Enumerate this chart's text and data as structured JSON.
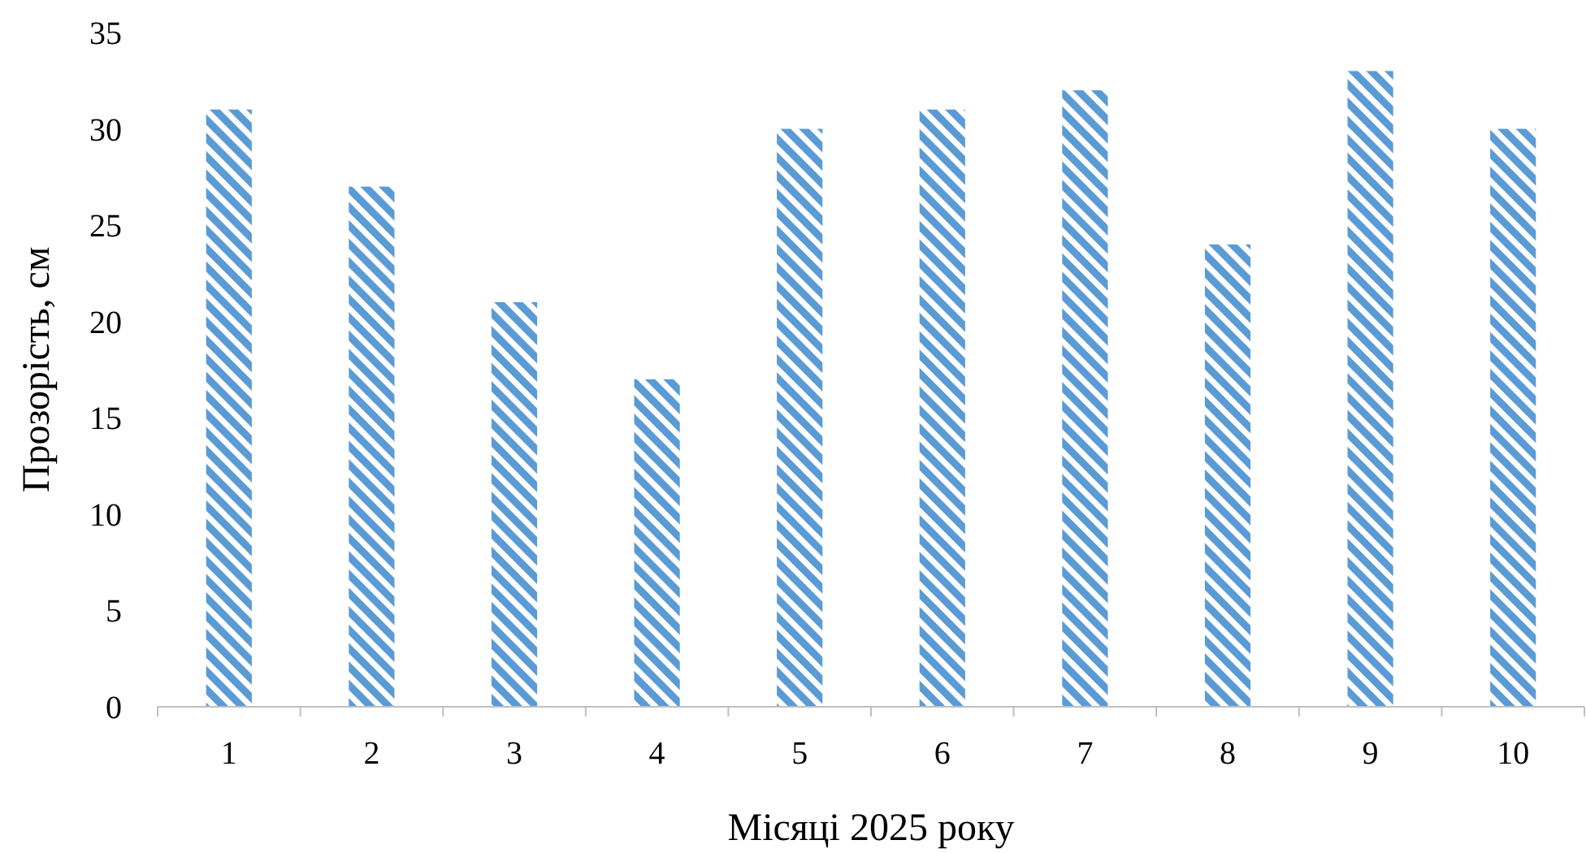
{
  "chart_data": {
    "type": "bar",
    "xlabel": "Місяці 2025 року",
    "ylabel": "Прозорість, см",
    "categories": [
      "1",
      "2",
      "3",
      "4",
      "5",
      "6",
      "7",
      "8",
      "9",
      "10"
    ],
    "values": [
      31,
      27,
      21,
      17,
      30,
      31,
      32,
      24,
      33,
      30
    ],
    "color": "#5b9bd5",
    "ylim": [
      0,
      35
    ],
    "yticks": [
      0,
      5,
      10,
      15,
      20,
      25,
      30,
      35
    ],
    "grid": false
  }
}
